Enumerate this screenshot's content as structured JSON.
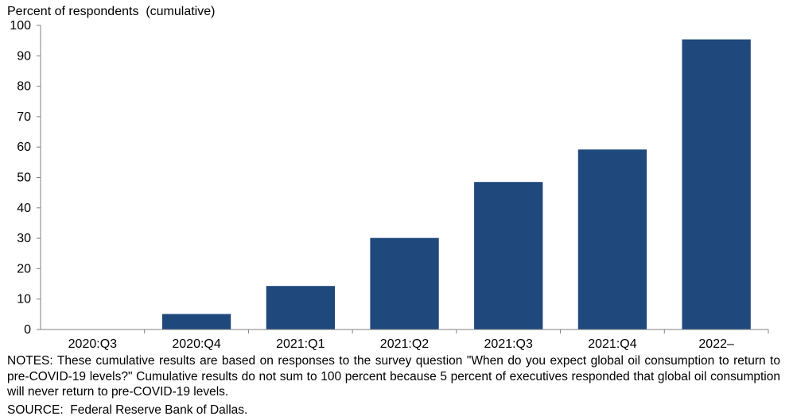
{
  "chart_data": {
    "type": "bar",
    "ylabel": "Percent of respondents  (cumulative)",
    "xlabel": "",
    "categories": [
      "2020:Q3",
      "2020:Q4",
      "2021:Q1",
      "2021:Q2",
      "2021:Q3",
      "2021:Q4",
      "2022–"
    ],
    "values": [
      0,
      5.1,
      14.3,
      30.1,
      48.5,
      59.2,
      95.4
    ],
    "ylim": [
      0,
      100
    ],
    "yticks": [
      0,
      10,
      20,
      30,
      40,
      50,
      60,
      70,
      80,
      90,
      100
    ],
    "grid": false,
    "legend": "none",
    "bar_color": "#1f497d"
  },
  "notes": "NOTES: These cumulative results are based on responses to the survey question \"When do you expect global oil consumption to return to pre-COVID-19 levels?\" Cumulative results do not sum to 100 percent because 5 percent of executives responded that global oil consumption will never return to pre-COVID-19 levels.",
  "source": "SOURCE:  Federal Reserve Bank of Dallas."
}
